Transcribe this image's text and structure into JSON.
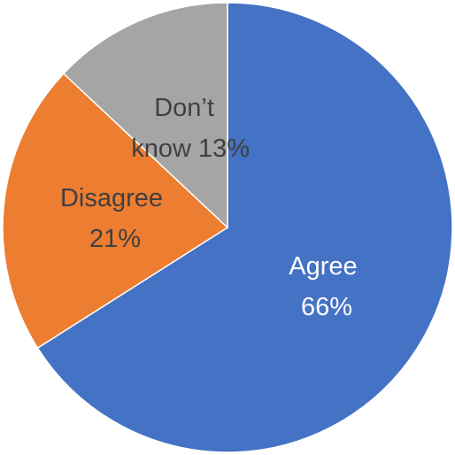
{
  "chart_data": {
    "type": "pie",
    "title": "",
    "slices": [
      {
        "label": "Agree",
        "value": 66,
        "pct_label": "66%",
        "color": "#4472C4",
        "text_color": "#ffffff"
      },
      {
        "label": "Disagree",
        "value": 21,
        "pct_label": "21%",
        "color": "#ED7D31",
        "text_color": "#404040"
      },
      {
        "label": "Don’t know",
        "value": 13,
        "pct_label": "13%",
        "color": "#A5A5A5",
        "text_color": "#404040"
      }
    ],
    "start_angle": "12 o'clock",
    "direction": "clockwise",
    "legend": "none"
  }
}
